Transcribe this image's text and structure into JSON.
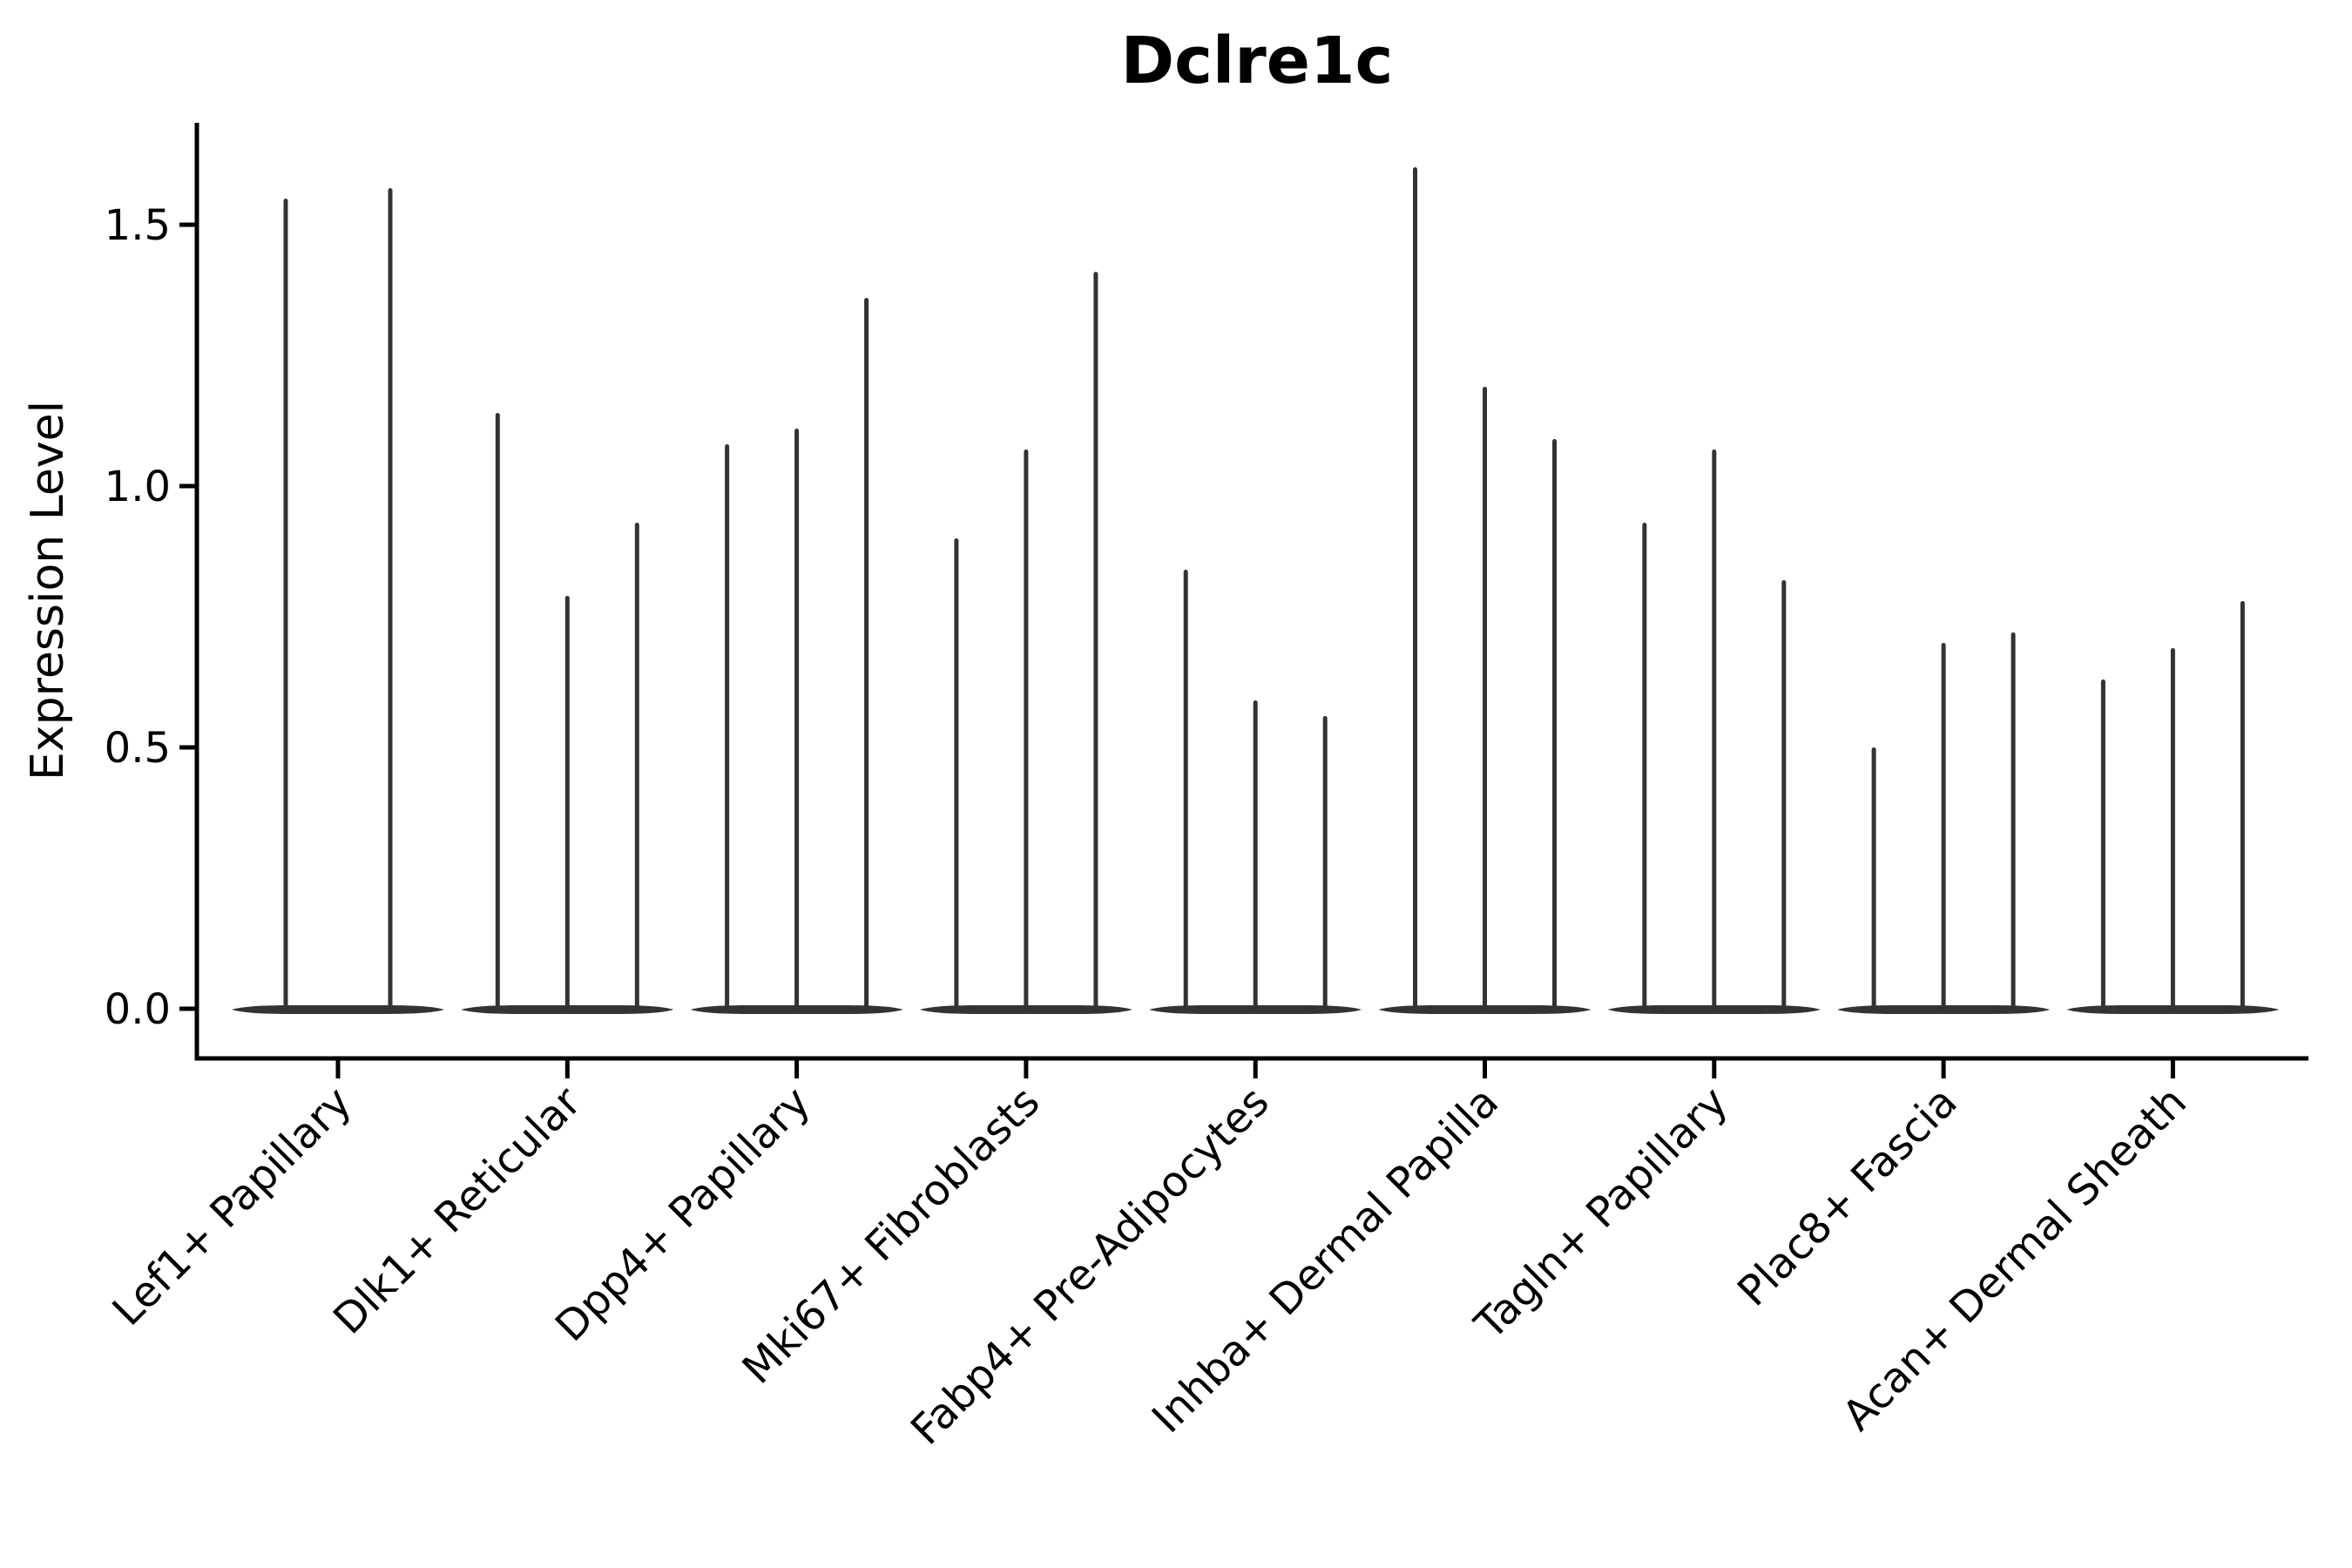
{
  "title": "Dclre1c",
  "colors": {
    "violin": "#333333",
    "axis": "#000000",
    "text": "#000000",
    "background": "#ffffff"
  },
  "chart_data": {
    "type": "violin",
    "title": "Dclre1c",
    "xlabel": "",
    "ylabel": "Expression Level",
    "ylim": [
      0.0,
      1.7
    ],
    "yticks": [
      0.0,
      0.5,
      1.0,
      1.5
    ],
    "ytick_labels": [
      "0.0",
      "0.5",
      "1.0",
      "1.5"
    ],
    "grid": false,
    "legend_position": "none",
    "x_tick_rotation_deg": 45,
    "baseline_value": 0.0,
    "categories": [
      "Lef1+ Papillary",
      "Dlk1+ Reticular",
      "Dpp4+ Papillary",
      "Mki67+ Fibroblasts",
      "Fabp4+ Pre-Adipocytes",
      "Inhba+ Dermal Papilla",
      "Tagln+ Papillary",
      "Plac8+ Fascia",
      "Acan+ Dermal Sheath"
    ],
    "series_note": "Each category shows 2-3 very narrow violins; density mass sits at expression 0 (flat base) with a thin spike rising to each violin's maximum expression value.",
    "groups": [
      {
        "category": "Lef1+ Papillary",
        "violin_max_values": [
          1.55,
          1.57
        ]
      },
      {
        "category": "Dlk1+ Reticular",
        "violin_max_values": [
          1.14,
          0.79,
          0.93
        ]
      },
      {
        "category": "Dpp4+ Papillary",
        "violin_max_values": [
          1.08,
          1.11,
          1.36
        ]
      },
      {
        "category": "Mki67+ Fibroblasts",
        "violin_max_values": [
          0.9,
          1.07,
          1.41
        ]
      },
      {
        "category": "Fabp4+ Pre-Adipocytes",
        "violin_max_values": [
          0.84,
          0.59,
          0.56
        ]
      },
      {
        "category": "Inhba+ Dermal Papilla",
        "violin_max_values": [
          1.61,
          1.19,
          1.09
        ]
      },
      {
        "category": "Tagln+ Papillary",
        "violin_max_values": [
          0.93,
          1.07,
          0.82
        ]
      },
      {
        "category": "Plac8+ Fascia",
        "violin_max_values": [
          0.5,
          0.7,
          0.72
        ]
      },
      {
        "category": "Acan+ Dermal Sheath",
        "violin_max_values": [
          0.63,
          0.69,
          0.78
        ]
      }
    ]
  }
}
